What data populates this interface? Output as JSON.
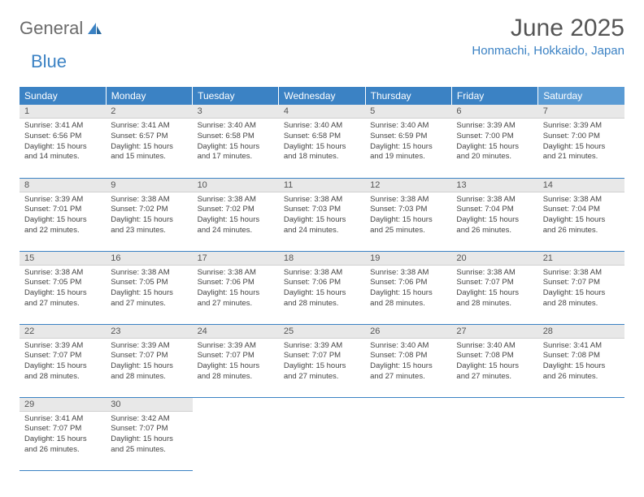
{
  "logo": {
    "text1": "General",
    "text2": "Blue"
  },
  "header": {
    "month_year": "June 2025",
    "location": "Honmachi, Hokkaido, Japan"
  },
  "colors": {
    "header_blue": "#3b82c4",
    "sat_blue": "#5a9bd4",
    "daynum_bg": "#e8e8e8",
    "text_gray": "#555555",
    "body_text": "#444444",
    "page_bg": "#ffffff"
  },
  "weekdays": [
    "Sunday",
    "Monday",
    "Tuesday",
    "Wednesday",
    "Thursday",
    "Friday",
    "Saturday"
  ],
  "days": [
    {
      "n": 1,
      "sunrise": "3:41 AM",
      "sunset": "6:56 PM",
      "daylight": "15 hours and 14 minutes."
    },
    {
      "n": 2,
      "sunrise": "3:41 AM",
      "sunset": "6:57 PM",
      "daylight": "15 hours and 15 minutes."
    },
    {
      "n": 3,
      "sunrise": "3:40 AM",
      "sunset": "6:58 PM",
      "daylight": "15 hours and 17 minutes."
    },
    {
      "n": 4,
      "sunrise": "3:40 AM",
      "sunset": "6:58 PM",
      "daylight": "15 hours and 18 minutes."
    },
    {
      "n": 5,
      "sunrise": "3:40 AM",
      "sunset": "6:59 PM",
      "daylight": "15 hours and 19 minutes."
    },
    {
      "n": 6,
      "sunrise": "3:39 AM",
      "sunset": "7:00 PM",
      "daylight": "15 hours and 20 minutes."
    },
    {
      "n": 7,
      "sunrise": "3:39 AM",
      "sunset": "7:00 PM",
      "daylight": "15 hours and 21 minutes."
    },
    {
      "n": 8,
      "sunrise": "3:39 AM",
      "sunset": "7:01 PM",
      "daylight": "15 hours and 22 minutes."
    },
    {
      "n": 9,
      "sunrise": "3:38 AM",
      "sunset": "7:02 PM",
      "daylight": "15 hours and 23 minutes."
    },
    {
      "n": 10,
      "sunrise": "3:38 AM",
      "sunset": "7:02 PM",
      "daylight": "15 hours and 24 minutes."
    },
    {
      "n": 11,
      "sunrise": "3:38 AM",
      "sunset": "7:03 PM",
      "daylight": "15 hours and 24 minutes."
    },
    {
      "n": 12,
      "sunrise": "3:38 AM",
      "sunset": "7:03 PM",
      "daylight": "15 hours and 25 minutes."
    },
    {
      "n": 13,
      "sunrise": "3:38 AM",
      "sunset": "7:04 PM",
      "daylight": "15 hours and 26 minutes."
    },
    {
      "n": 14,
      "sunrise": "3:38 AM",
      "sunset": "7:04 PM",
      "daylight": "15 hours and 26 minutes."
    },
    {
      "n": 15,
      "sunrise": "3:38 AM",
      "sunset": "7:05 PM",
      "daylight": "15 hours and 27 minutes."
    },
    {
      "n": 16,
      "sunrise": "3:38 AM",
      "sunset": "7:05 PM",
      "daylight": "15 hours and 27 minutes."
    },
    {
      "n": 17,
      "sunrise": "3:38 AM",
      "sunset": "7:06 PM",
      "daylight": "15 hours and 27 minutes."
    },
    {
      "n": 18,
      "sunrise": "3:38 AM",
      "sunset": "7:06 PM",
      "daylight": "15 hours and 28 minutes."
    },
    {
      "n": 19,
      "sunrise": "3:38 AM",
      "sunset": "7:06 PM",
      "daylight": "15 hours and 28 minutes."
    },
    {
      "n": 20,
      "sunrise": "3:38 AM",
      "sunset": "7:07 PM",
      "daylight": "15 hours and 28 minutes."
    },
    {
      "n": 21,
      "sunrise": "3:38 AM",
      "sunset": "7:07 PM",
      "daylight": "15 hours and 28 minutes."
    },
    {
      "n": 22,
      "sunrise": "3:39 AM",
      "sunset": "7:07 PM",
      "daylight": "15 hours and 28 minutes."
    },
    {
      "n": 23,
      "sunrise": "3:39 AM",
      "sunset": "7:07 PM",
      "daylight": "15 hours and 28 minutes."
    },
    {
      "n": 24,
      "sunrise": "3:39 AM",
      "sunset": "7:07 PM",
      "daylight": "15 hours and 28 minutes."
    },
    {
      "n": 25,
      "sunrise": "3:39 AM",
      "sunset": "7:07 PM",
      "daylight": "15 hours and 27 minutes."
    },
    {
      "n": 26,
      "sunrise": "3:40 AM",
      "sunset": "7:08 PM",
      "daylight": "15 hours and 27 minutes."
    },
    {
      "n": 27,
      "sunrise": "3:40 AM",
      "sunset": "7:08 PM",
      "daylight": "15 hours and 27 minutes."
    },
    {
      "n": 28,
      "sunrise": "3:41 AM",
      "sunset": "7:08 PM",
      "daylight": "15 hours and 26 minutes."
    },
    {
      "n": 29,
      "sunrise": "3:41 AM",
      "sunset": "7:07 PM",
      "daylight": "15 hours and 26 minutes."
    },
    {
      "n": 30,
      "sunrise": "3:42 AM",
      "sunset": "7:07 PM",
      "daylight": "15 hours and 25 minutes."
    }
  ],
  "labels": {
    "sunrise": "Sunrise:",
    "sunset": "Sunset:",
    "daylight": "Daylight:"
  },
  "layout": {
    "start_weekday": 0,
    "weeks": 5,
    "cols": 7
  }
}
